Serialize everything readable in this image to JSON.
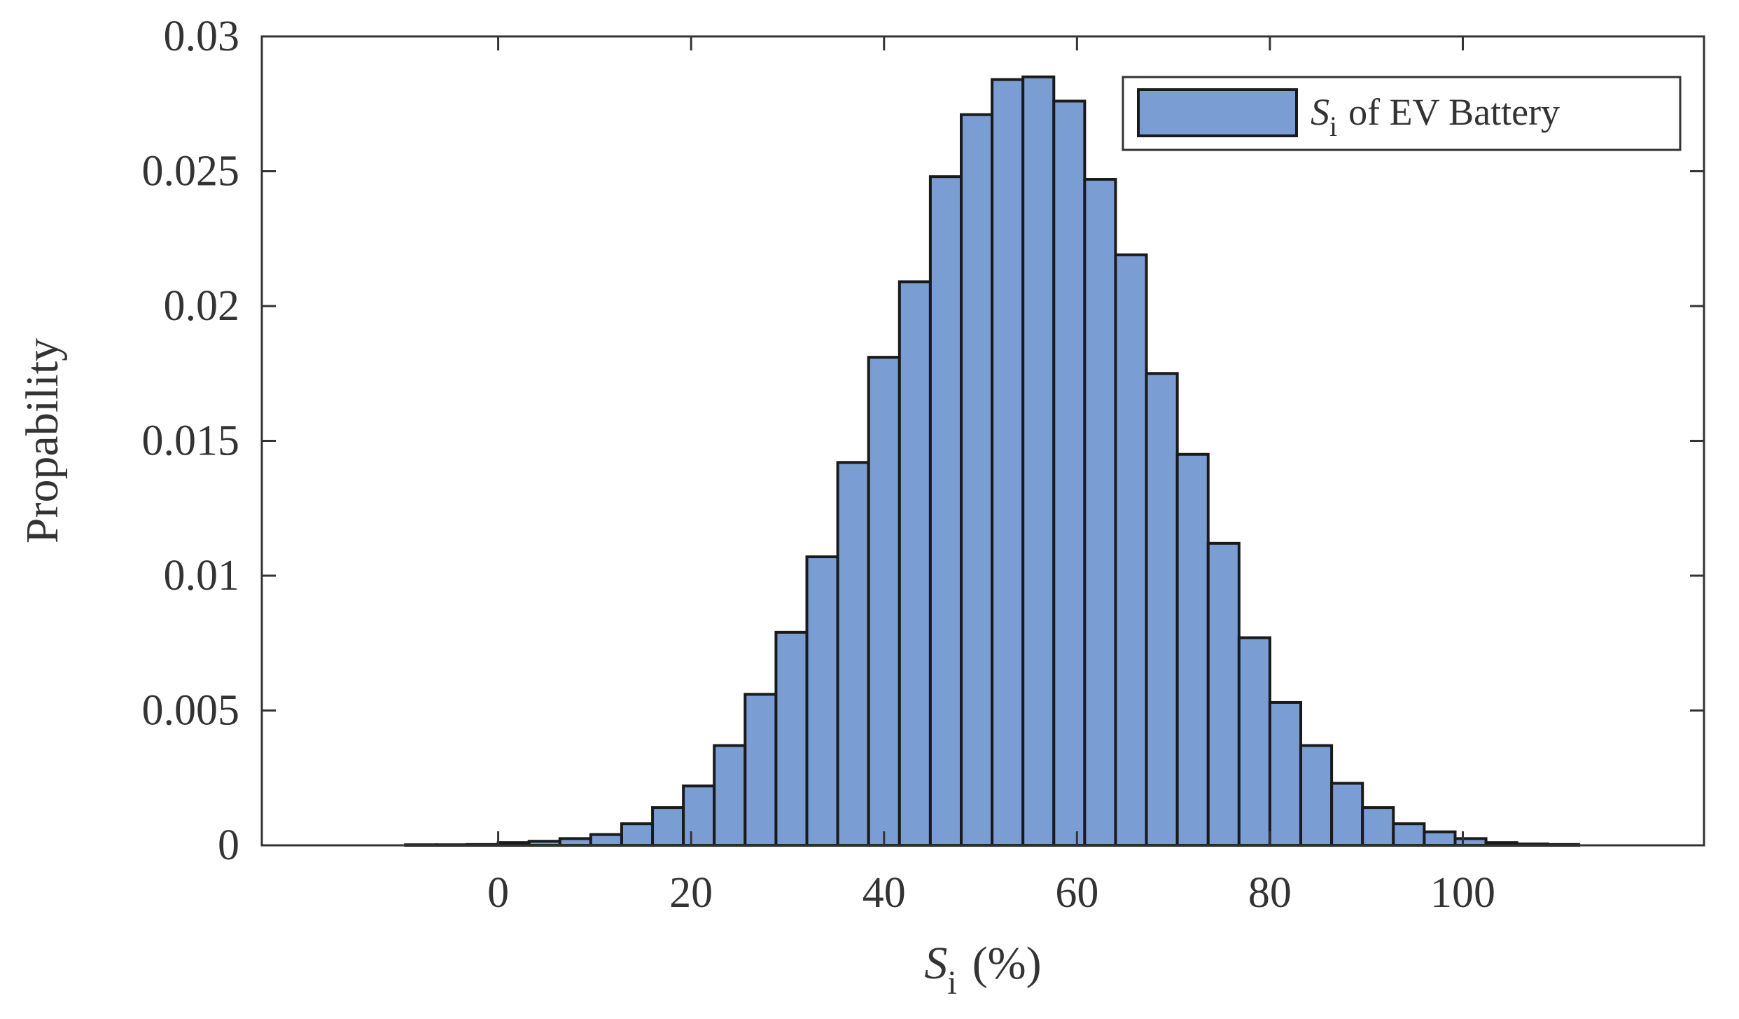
{
  "chart_data": {
    "type": "bar",
    "subtype": "histogram",
    "bin_edges": [
      -9.6,
      -6.4,
      -3.2,
      0,
      3.2,
      6.4,
      9.6,
      12.8,
      16,
      19.2,
      22.4,
      25.6,
      28.8,
      32,
      35.2,
      38.4,
      41.6,
      44.8,
      48,
      51.2,
      54.4,
      57.6,
      60.8,
      64,
      67.2,
      70.4,
      73.6,
      76.8,
      80,
      83.2,
      86.4,
      89.6,
      92.8,
      96,
      99.2,
      102.4,
      105.6,
      108.8,
      112
    ],
    "values": [
      2e-05,
      2e-05,
      3e-05,
      0.0001,
      0.00015,
      0.00025,
      0.0004,
      0.0008,
      0.0014,
      0.0022,
      0.0037,
      0.0056,
      0.0079,
      0.0107,
      0.0142,
      0.0181,
      0.0209,
      0.0248,
      0.0271,
      0.0284,
      0.0285,
      0.0276,
      0.0247,
      0.0219,
      0.0175,
      0.0145,
      0.0112,
      0.0077,
      0.0053,
      0.0037,
      0.0023,
      0.0014,
      0.0008,
      0.0005,
      0.00025,
      0.0001,
      5e-05,
      3e-05
    ],
    "xlabel_main": "S",
    "xlabel_sub": "i",
    "xlabel_suffix": "(%)",
    "ylabel": "Propability",
    "xlim": [
      -24.5,
      125
    ],
    "ylim": [
      0,
      0.03
    ],
    "xticks": [
      0,
      20,
      40,
      60,
      80,
      100
    ],
    "xtick_labels": [
      "0",
      "20",
      "40",
      "60",
      "80",
      "100"
    ],
    "yticks": [
      0,
      0.005,
      0.01,
      0.015,
      0.02,
      0.025,
      0.03
    ],
    "ytick_labels": [
      "0",
      "0.005",
      "0.01",
      "0.015",
      "0.02",
      "0.025",
      "0.03"
    ],
    "legend": {
      "placement": "top-right",
      "label_main": "S",
      "label_sub": "i",
      "label_suffix": "of EV Battery"
    },
    "grid": false,
    "colors": {
      "bar_fill": "#7a9dd3",
      "bar_edge": "#1a1a1a",
      "axis": "#333333"
    }
  }
}
